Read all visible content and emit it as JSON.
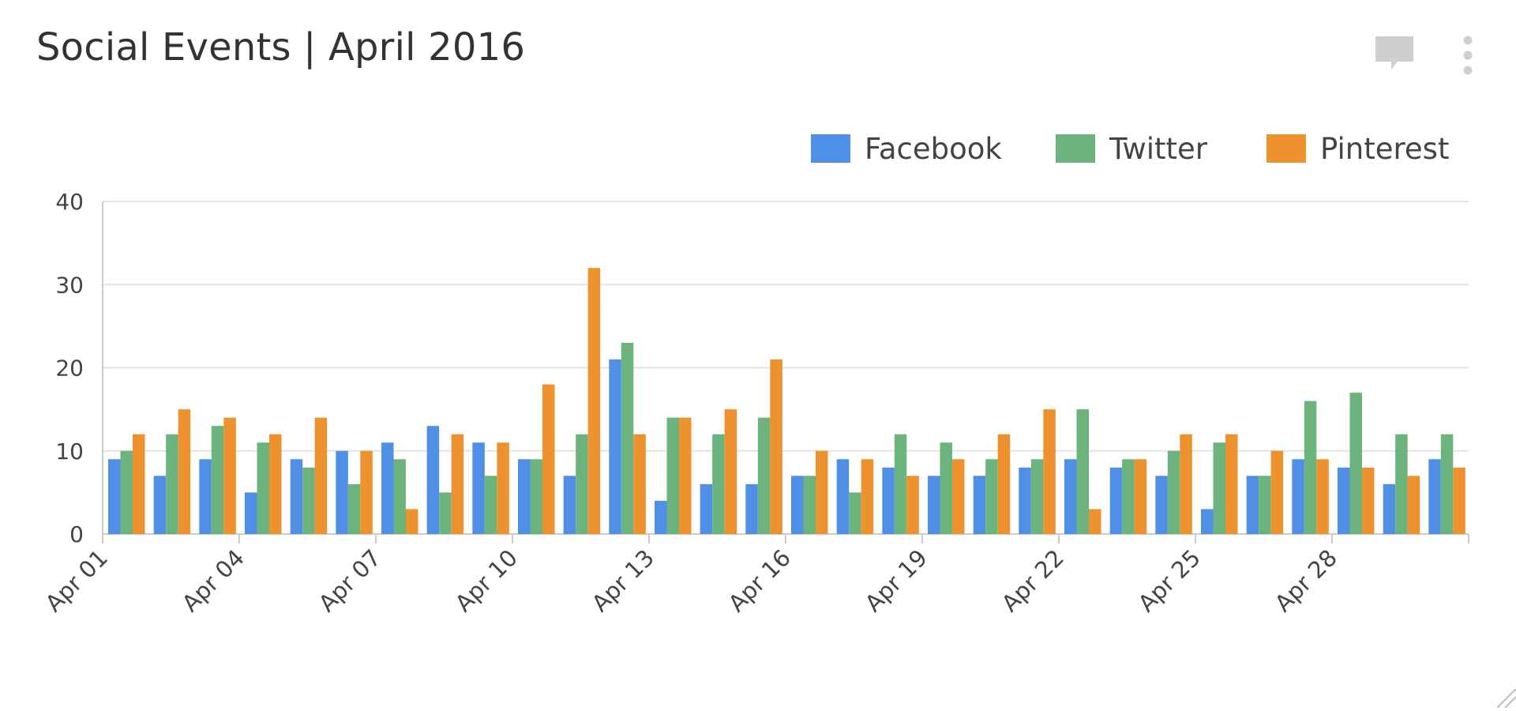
{
  "widget": {
    "title": "Social Events | April 2016",
    "comment_icon": "comment-icon",
    "menu_icon": "more-vertical-icon",
    "resize_icon": "resize-corner-icon"
  },
  "colors": {
    "facebook": "#4f8fe6",
    "twitter": "#6db37d",
    "pinterest": "#ee9230",
    "grid": "#e3e3e3",
    "axis": "#cccccc",
    "icon": "#cfcfcf"
  },
  "chart_data": {
    "type": "bar",
    "title": "Social Events | April 2016",
    "xlabel": "",
    "ylabel": "",
    "ylim": [
      0,
      40
    ],
    "yticks": [
      0,
      10,
      20,
      30,
      40
    ],
    "grid": true,
    "legend_position": "top-right",
    "categories": [
      "Apr 01",
      "Apr 02",
      "Apr 03",
      "Apr 04",
      "Apr 05",
      "Apr 06",
      "Apr 07",
      "Apr 08",
      "Apr 09",
      "Apr 10",
      "Apr 11",
      "Apr 12",
      "Apr 13",
      "Apr 14",
      "Apr 15",
      "Apr 16",
      "Apr 17",
      "Apr 18",
      "Apr 19",
      "Apr 20",
      "Apr 21",
      "Apr 22",
      "Apr 23",
      "Apr 24",
      "Apr 25",
      "Apr 26",
      "Apr 27",
      "Apr 28",
      "Apr 29",
      "Apr 30"
    ],
    "x_tick_labels": [
      "Apr 01",
      "Apr 04",
      "Apr 07",
      "Apr 10",
      "Apr 13",
      "Apr 16",
      "Apr 19",
      "Apr 22",
      "Apr 25",
      "Apr 28"
    ],
    "series": [
      {
        "name": "Facebook",
        "color": "#4f8fe6",
        "values": [
          9,
          7,
          9,
          5,
          9,
          10,
          11,
          13,
          11,
          9,
          7,
          21,
          4,
          6,
          6,
          7,
          9,
          8,
          7,
          7,
          8,
          9,
          8,
          7,
          3,
          7,
          9,
          8,
          6,
          9
        ]
      },
      {
        "name": "Twitter",
        "color": "#6db37d",
        "values": [
          10,
          12,
          13,
          11,
          8,
          6,
          9,
          5,
          7,
          9,
          12,
          23,
          14,
          12,
          14,
          7,
          5,
          12,
          11,
          9,
          9,
          15,
          9,
          10,
          11,
          7,
          16,
          17,
          12,
          12
        ]
      },
      {
        "name": "Pinterest",
        "color": "#ee9230",
        "values": [
          12,
          15,
          14,
          12,
          14,
          10,
          3,
          12,
          11,
          18,
          32,
          12,
          14,
          15,
          21,
          10,
          9,
          7,
          9,
          12,
          15,
          3,
          9,
          12,
          12,
          10,
          9,
          8,
          7,
          8
        ]
      }
    ]
  }
}
